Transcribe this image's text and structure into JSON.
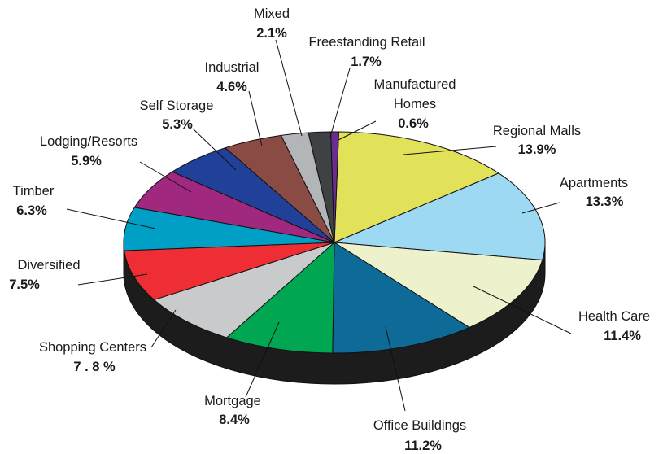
{
  "chart_data": {
    "type": "pie",
    "title": "",
    "slices": [
      {
        "name": "Regional Malls",
        "value": 13.9,
        "label": "13.9%",
        "color": "#E2E25A"
      },
      {
        "name": "Apartments",
        "value": 13.3,
        "label": "13.3%",
        "color": "#9DD9F3"
      },
      {
        "name": "Health Care",
        "value": 11.4,
        "label": "11.4%",
        "color": "#EEF2CC"
      },
      {
        "name": "Office Buildings",
        "value": 11.2,
        "label": "11.2%",
        "color": "#0E6A96"
      },
      {
        "name": "Mortgage",
        "value": 8.4,
        "label": "8.4%",
        "color": "#00A651"
      },
      {
        "name": "Shopping Centers",
        "value": 7.8,
        "label": "7 . 8 %",
        "color": "#C9CACC"
      },
      {
        "name": "Diversified",
        "value": 7.5,
        "label": "7.5%",
        "color": "#EE2E34"
      },
      {
        "name": "Timber",
        "value": 6.3,
        "label": "6.3%",
        "color": "#00A0C6"
      },
      {
        "name": "Lodging/Resorts",
        "value": 5.9,
        "label": "5.9%",
        "color": "#A0287F"
      },
      {
        "name": "Self Storage",
        "value": 5.3,
        "label": "5.3%",
        "color": "#21409A"
      },
      {
        "name": "Industrial",
        "value": 4.6,
        "label": "4.6%",
        "color": "#8B4B45"
      },
      {
        "name": "Mixed",
        "value": 2.1,
        "label": "2.1%",
        "color": "#B4B5B8"
      },
      {
        "name": "Freestanding Retail",
        "value": 1.7,
        "label": "1.7%",
        "color": "#3F4244"
      },
      {
        "name": "Manufactured Homes",
        "value": 0.6,
        "label": "0.6%",
        "color": "#6A2C91"
      }
    ],
    "side_color": "#1c1c1c",
    "edge_color": "#111111"
  }
}
